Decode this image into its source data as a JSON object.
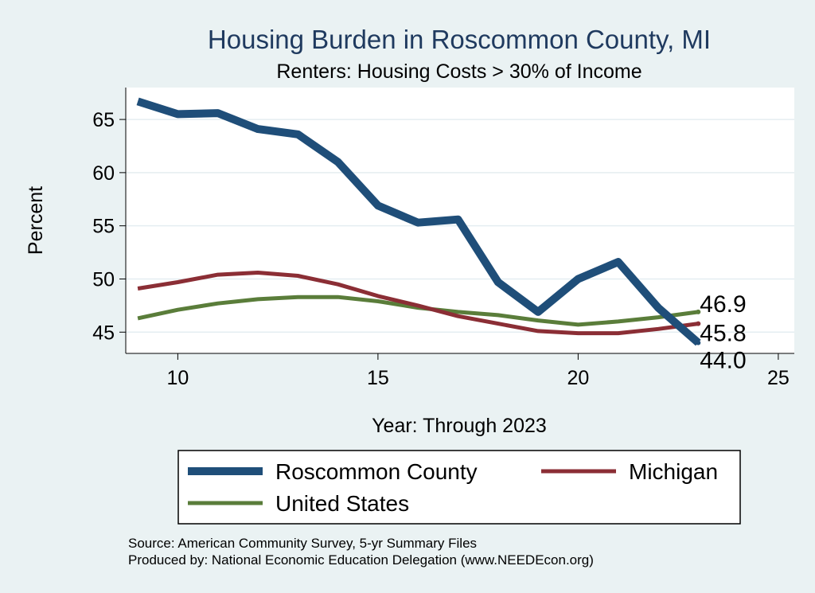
{
  "chart_data": {
    "type": "line",
    "title": "Housing Burden in Roscommon County, MI",
    "subtitle": "Renters: Housing Costs > 30% of Income",
    "xlabel": "Year: Through 2023",
    "ylabel": "Percent",
    "xlim": [
      8.7,
      25.4
    ],
    "ylim": [
      43.0,
      68.0
    ],
    "xticks": [
      10,
      15,
      20,
      25
    ],
    "yticks": [
      45,
      50,
      55,
      60,
      65
    ],
    "grid": true,
    "legend_position": "bottom",
    "series": [
      {
        "name": "Roscommon County",
        "color": "#1f4e79",
        "x": [
          9,
          10,
          11,
          12,
          13,
          14,
          15,
          16,
          17,
          18,
          19,
          20,
          21,
          22,
          23
        ],
        "y": [
          66.7,
          65.5,
          65.6,
          64.1,
          63.6,
          61.0,
          56.9,
          55.3,
          55.6,
          49.7,
          46.9,
          50.0,
          51.6,
          47.3,
          44.0
        ],
        "end_label": "44.0"
      },
      {
        "name": "Michigan",
        "color": "#8b2e35",
        "x": [
          9,
          10,
          11,
          12,
          13,
          14,
          15,
          16,
          17,
          18,
          19,
          20,
          21,
          22,
          23
        ],
        "y": [
          49.1,
          49.7,
          50.4,
          50.6,
          50.3,
          49.5,
          48.4,
          47.5,
          46.5,
          45.8,
          45.1,
          44.9,
          44.9,
          45.3,
          45.8
        ],
        "end_label": "45.8"
      },
      {
        "name": "United States",
        "color": "#5a7d3a",
        "x": [
          9,
          10,
          11,
          12,
          13,
          14,
          15,
          16,
          17,
          18,
          19,
          20,
          21,
          22,
          23
        ],
        "y": [
          46.3,
          47.1,
          47.7,
          48.1,
          48.3,
          48.3,
          47.9,
          47.3,
          46.9,
          46.6,
          46.1,
          45.7,
          46.0,
          46.4,
          46.9
        ],
        "end_label": "46.9"
      }
    ]
  },
  "notes": {
    "source": "Source: American Community Survey, 5-yr Summary Files",
    "producer": "Produced by: National Economic Education Delegation (www.NEEDEcon.org)"
  }
}
